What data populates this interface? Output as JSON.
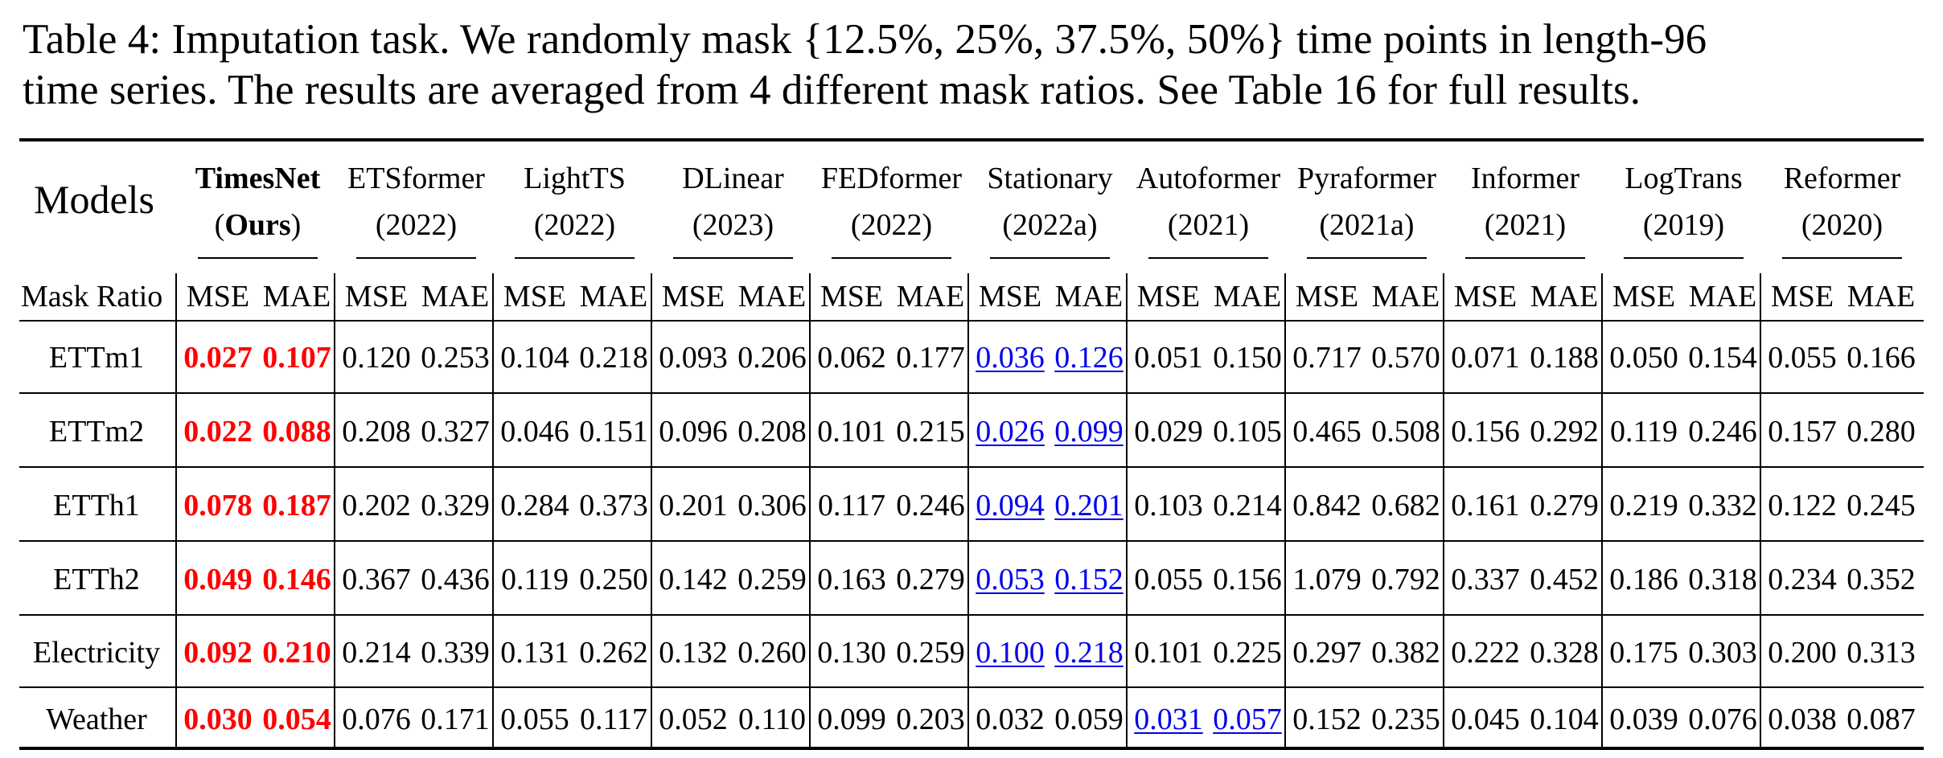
{
  "caption": {
    "line1": "Table 4: Imputation task. We randomly mask {12.5%, 25%, 37.5%, 50%} time points in length-96",
    "line2": "time series. The results are averaged from 4 different mask ratios. See Table 16 for full results."
  },
  "table": {
    "models_label": "Models",
    "mask_ratio_label": "Mask Ratio",
    "metric_labels": [
      "MSE",
      "MAE"
    ],
    "models": [
      {
        "name": "TimesNet",
        "year_prefix": "(",
        "year": "Ours",
        "year_suffix": ")"
      },
      {
        "name": "ETSformer",
        "year": "(2022)"
      },
      {
        "name": "LightTS",
        "year": "(2022)"
      },
      {
        "name": "DLinear",
        "year": "(2023)"
      },
      {
        "name": "FEDformer",
        "year": "(2022)"
      },
      {
        "name": "Stationary",
        "year": "(2022a)"
      },
      {
        "name": "Autoformer",
        "year": "(2021)"
      },
      {
        "name": "Pyraformer",
        "year": "(2021a)"
      },
      {
        "name": "Informer",
        "year": "(2021)"
      },
      {
        "name": "LogTrans",
        "year": "(2019)"
      },
      {
        "name": "Reformer",
        "year": "(2020)"
      }
    ],
    "rows": [
      {
        "dataset": "ETTm1",
        "values": [
          "0.027",
          "0.107",
          "0.120",
          "0.253",
          "0.104",
          "0.218",
          "0.093",
          "0.206",
          "0.062",
          "0.177",
          "0.036",
          "0.126",
          "0.051",
          "0.150",
          "0.717",
          "0.570",
          "0.071",
          "0.188",
          "0.050",
          "0.154",
          "0.055",
          "0.166"
        ],
        "best": [
          0,
          1
        ],
        "second": [
          10,
          11
        ]
      },
      {
        "dataset": "ETTm2",
        "values": [
          "0.022",
          "0.088",
          "0.208",
          "0.327",
          "0.046",
          "0.151",
          "0.096",
          "0.208",
          "0.101",
          "0.215",
          "0.026",
          "0.099",
          "0.029",
          "0.105",
          "0.465",
          "0.508",
          "0.156",
          "0.292",
          "0.119",
          "0.246",
          "0.157",
          "0.280"
        ],
        "best": [
          0,
          1
        ],
        "second": [
          10,
          11
        ]
      },
      {
        "dataset": "ETTh1",
        "values": [
          "0.078",
          "0.187",
          "0.202",
          "0.329",
          "0.284",
          "0.373",
          "0.201",
          "0.306",
          "0.117",
          "0.246",
          "0.094",
          "0.201",
          "0.103",
          "0.214",
          "0.842",
          "0.682",
          "0.161",
          "0.279",
          "0.219",
          "0.332",
          "0.122",
          "0.245"
        ],
        "best": [
          0,
          1
        ],
        "second": [
          10,
          11
        ]
      },
      {
        "dataset": "ETTh2",
        "values": [
          "0.049",
          "0.146",
          "0.367",
          "0.436",
          "0.119",
          "0.250",
          "0.142",
          "0.259",
          "0.163",
          "0.279",
          "0.053",
          "0.152",
          "0.055",
          "0.156",
          "1.079",
          "0.792",
          "0.337",
          "0.452",
          "0.186",
          "0.318",
          "0.234",
          "0.352"
        ],
        "best": [
          0,
          1
        ],
        "second": [
          10,
          11
        ]
      },
      {
        "dataset": "Electricity",
        "values": [
          "0.092",
          "0.210",
          "0.214",
          "0.339",
          "0.131",
          "0.262",
          "0.132",
          "0.260",
          "0.130",
          "0.259",
          "0.100",
          "0.218",
          "0.101",
          "0.225",
          "0.297",
          "0.382",
          "0.222",
          "0.328",
          "0.175",
          "0.303",
          "0.200",
          "0.313"
        ],
        "best": [
          0,
          1
        ],
        "second": [
          10,
          11
        ]
      },
      {
        "dataset": "Weather",
        "values": [
          "0.030",
          "0.054",
          "0.076",
          "0.171",
          "0.055",
          "0.117",
          "0.052",
          "0.110",
          "0.099",
          "0.203",
          "0.032",
          "0.059",
          "0.031",
          "0.057",
          "0.152",
          "0.235",
          "0.045",
          "0.104",
          "0.039",
          "0.076",
          "0.038",
          "0.087"
        ],
        "best": [
          0,
          1
        ],
        "second": [
          12,
          13
        ]
      }
    ]
  },
  "colors": {
    "best": "#ff0000",
    "second": "#0000ee"
  }
}
